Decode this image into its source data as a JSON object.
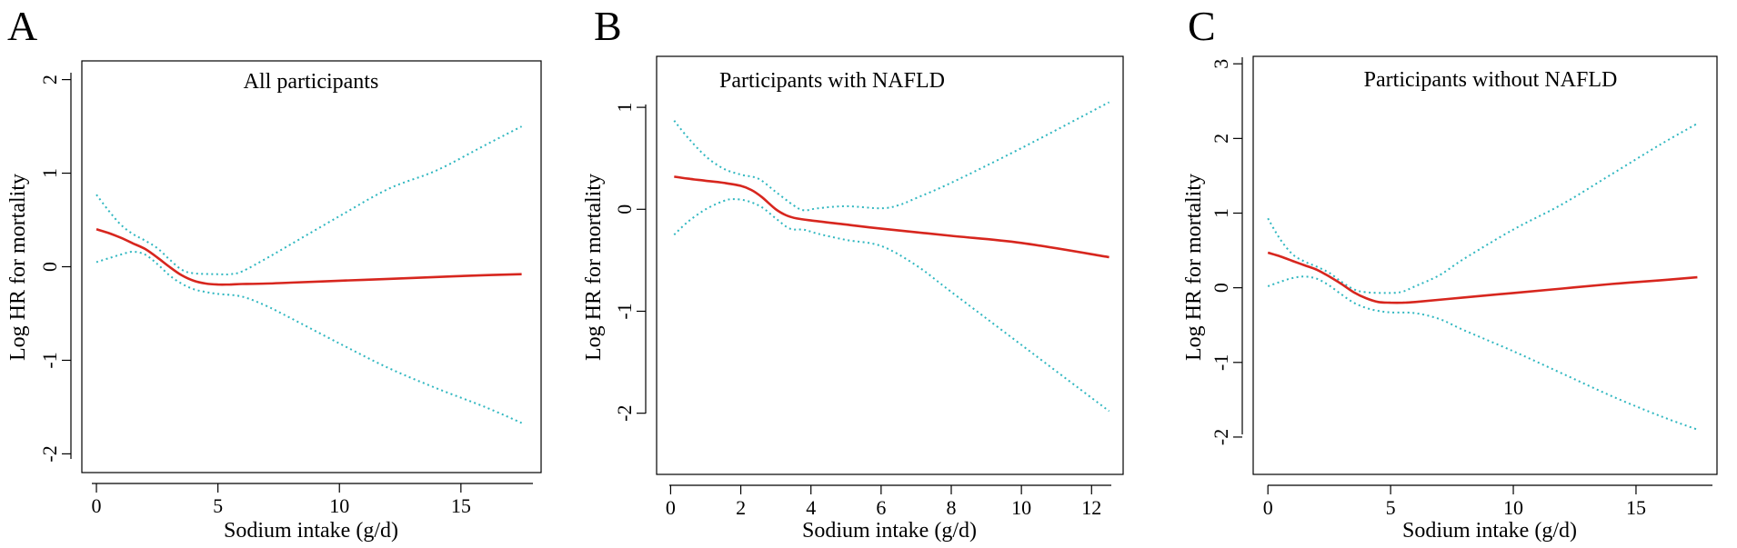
{
  "colors": {
    "fit": "#d7261e",
    "ci": "#30b7c0",
    "axis": "#000000"
  },
  "chart_data": [
    {
      "type": "line",
      "panel": "A",
      "title": "All participants",
      "xlabel": "Sodium intake (g/d)",
      "ylabel": "Log HR for mortality",
      "xlim": [
        -0.6,
        18.3
      ],
      "ylim": [
        -2.2,
        2.2
      ],
      "xticks": [
        0,
        5,
        10,
        15
      ],
      "yticks": [
        -2,
        -1,
        0,
        1,
        2
      ],
      "series": [
        {
          "name": "Estimate",
          "role": "fit",
          "x": [
            0,
            0.5,
            1,
            1.5,
            2,
            2.5,
            3,
            3.5,
            4,
            4.5,
            5,
            5.5,
            6,
            7,
            8,
            10,
            12,
            14,
            16,
            17.5
          ],
          "y": [
            0.4,
            0.36,
            0.31,
            0.25,
            0.19,
            0.1,
            0.0,
            -0.09,
            -0.15,
            -0.18,
            -0.19,
            -0.19,
            -0.185,
            -0.18,
            -0.17,
            -0.15,
            -0.13,
            -0.11,
            -0.09,
            -0.08
          ]
        },
        {
          "name": "95% CI upper",
          "role": "ci",
          "x": [
            0,
            0.5,
            1,
            1.5,
            2,
            2.5,
            3,
            3.5,
            4,
            5,
            5.5,
            6,
            7,
            8,
            10,
            12,
            14,
            16,
            17.5
          ],
          "y": [
            0.77,
            0.6,
            0.45,
            0.35,
            0.28,
            0.2,
            0.08,
            -0.03,
            -0.07,
            -0.08,
            -0.08,
            -0.05,
            0.09,
            0.24,
            0.54,
            0.83,
            1.03,
            1.3,
            1.5
          ]
        },
        {
          "name": "95% CI lower",
          "role": "ci",
          "x": [
            0,
            0.5,
            1,
            1.5,
            2,
            2.5,
            3,
            3.5,
            4,
            4.5,
            5,
            6,
            7,
            8,
            10,
            12,
            14,
            16,
            17.5
          ],
          "y": [
            0.05,
            0.09,
            0.13,
            0.16,
            0.13,
            0.03,
            -0.09,
            -0.18,
            -0.24,
            -0.27,
            -0.29,
            -0.32,
            -0.42,
            -0.55,
            -0.82,
            -1.08,
            -1.3,
            -1.5,
            -1.67
          ]
        }
      ]
    },
    {
      "type": "line",
      "panel": "B",
      "title": "Participants with NAFLD",
      "xlabel": "Sodium intake (g/d)",
      "ylabel": "Log HR for mortality",
      "xlim": [
        -0.4,
        12.9
      ],
      "ylim": [
        -2.6,
        1.5
      ],
      "xticks": [
        0,
        2,
        4,
        6,
        8,
        10,
        12
      ],
      "yticks": [
        -2,
        -1,
        0,
        1
      ],
      "series": [
        {
          "name": "Estimate",
          "role": "fit",
          "x": [
            0.1,
            0.5,
            1,
            1.5,
            2,
            2.3,
            2.6,
            3,
            3.3,
            3.6,
            4,
            5,
            6,
            8,
            10,
            12.5
          ],
          "y": [
            0.32,
            0.3,
            0.28,
            0.26,
            0.23,
            0.19,
            0.12,
            0.0,
            -0.06,
            -0.09,
            -0.11,
            -0.15,
            -0.19,
            -0.26,
            -0.33,
            -0.47
          ]
        },
        {
          "name": "95% CI upper",
          "role": "ci",
          "x": [
            0.1,
            0.5,
            1,
            1.5,
            2,
            2.5,
            3,
            3.5,
            3.8,
            4.2,
            5,
            6,
            6.5,
            7,
            8,
            10,
            12.5
          ],
          "y": [
            0.87,
            0.7,
            0.52,
            0.4,
            0.34,
            0.3,
            0.17,
            0.04,
            -0.01,
            0.01,
            0.03,
            0.01,
            0.04,
            0.11,
            0.26,
            0.6,
            1.05
          ]
        },
        {
          "name": "95% CI lower",
          "role": "ci",
          "x": [
            0.1,
            0.5,
            1,
            1.5,
            1.8,
            2.2,
            2.6,
            3,
            3.4,
            3.8,
            4.2,
            5,
            6,
            7,
            8,
            10,
            12.5
          ],
          "y": [
            -0.25,
            -0.12,
            0.0,
            0.08,
            0.1,
            0.08,
            0.02,
            -0.09,
            -0.19,
            -0.2,
            -0.24,
            -0.3,
            -0.36,
            -0.55,
            -0.81,
            -1.33,
            -1.98
          ]
        }
      ]
    },
    {
      "type": "line",
      "panel": "C",
      "title": "Participants without NAFLD",
      "xlabel": "Sodium intake (g/d)",
      "ylabel": "Log HR for mortality",
      "xlim": [
        -0.6,
        18.3
      ],
      "ylim": [
        -2.5,
        3.1
      ],
      "xticks": [
        0,
        5,
        10,
        15
      ],
      "yticks": [
        -2,
        -1,
        0,
        1,
        2,
        3
      ],
      "series": [
        {
          "name": "Estimate",
          "role": "fit",
          "x": [
            0,
            0.5,
            1,
            1.5,
            2,
            2.5,
            3,
            3.5,
            4,
            4.5,
            5,
            5.5,
            6,
            8,
            10,
            12,
            14,
            16,
            17.5
          ],
          "y": [
            0.47,
            0.42,
            0.36,
            0.3,
            0.24,
            0.15,
            0.05,
            -0.06,
            -0.14,
            -0.19,
            -0.2,
            -0.2,
            -0.19,
            -0.13,
            -0.07,
            -0.01,
            0.05,
            0.1,
            0.14
          ]
        },
        {
          "name": "95% CI upper",
          "role": "ci",
          "x": [
            0,
            0.5,
            1,
            1.5,
            2,
            2.5,
            3,
            3.5,
            4,
            5,
            5.5,
            6,
            7,
            8,
            10,
            12,
            14,
            16,
            17.5
          ],
          "y": [
            0.93,
            0.65,
            0.45,
            0.35,
            0.28,
            0.2,
            0.08,
            -0.02,
            -0.06,
            -0.07,
            -0.05,
            0.02,
            0.17,
            0.39,
            0.78,
            1.12,
            1.52,
            1.92,
            2.2
          ]
        },
        {
          "name": "95% CI lower",
          "role": "ci",
          "x": [
            0,
            0.5,
            1,
            1.5,
            2,
            2.5,
            3,
            3.5,
            4,
            4.5,
            5,
            6,
            7,
            8,
            10,
            12,
            14,
            16,
            17.5
          ],
          "y": [
            0.02,
            0.08,
            0.13,
            0.15,
            0.12,
            0.03,
            -0.09,
            -0.2,
            -0.27,
            -0.31,
            -0.33,
            -0.34,
            -0.42,
            -0.57,
            -0.85,
            -1.15,
            -1.45,
            -1.72,
            -1.9
          ]
        }
      ]
    }
  ]
}
